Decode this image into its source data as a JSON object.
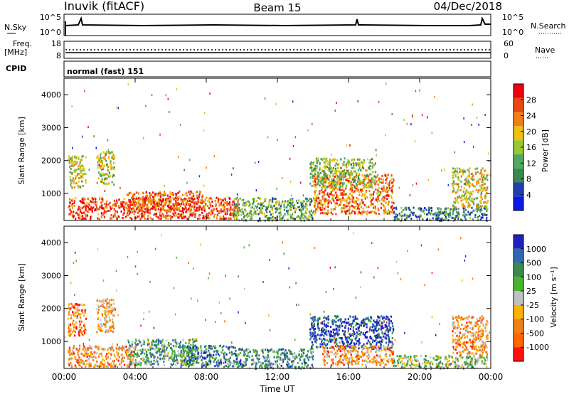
{
  "header": {
    "station": "Inuvik (fitACF)",
    "beam": "Beam 15",
    "date": "04/Dec/2018"
  },
  "top_panels": {
    "nsky_label": "N.Sky",
    "nsearch_label": "N.Search",
    "noise_ticks": [
      "10^5",
      "10^0"
    ],
    "freq_label_1": "Freq.",
    "freq_label_2": "[MHz]",
    "freq_ticks": [
      "18",
      "8"
    ],
    "nave_label": "Nave",
    "nave_ticks": [
      "60",
      "0"
    ],
    "cpid_label": "CPID",
    "cpid_value": "normal (fast) 151"
  },
  "colors": {
    "power": [
      "#0a1ae0",
      "#2040b0",
      "#3a8a50",
      "#52a860",
      "#9ac832",
      "#f0c010",
      "#f08018",
      "#e84814",
      "#f00010"
    ],
    "velocity": [
      "#2020c0",
      "#2e6ab0",
      "#3a8a50",
      "#46b430",
      "#c0c0c0",
      "#ffb000",
      "#f08018",
      "#ff6600",
      "#ff1010"
    ]
  },
  "chart_data": [
    {
      "type": "heatmap",
      "panel": "power",
      "ylabel": "Slant Range [km]",
      "xlabel": "",
      "x_ticks": [
        "00:00",
        "04:00",
        "08:00",
        "12:00",
        "16:00",
        "20:00",
        "00:00"
      ],
      "xlim_hours": [
        0,
        24
      ],
      "y_ticks": [
        1000,
        2000,
        3000,
        4000
      ],
      "ylim": [
        180,
        4500
      ],
      "colorbar": {
        "label": "Power [dB]",
        "range": [
          0,
          32
        ],
        "ticks": [
          4,
          8,
          12,
          16,
          20,
          24,
          28
        ]
      },
      "regions": [
        {
          "t0": 0.2,
          "t1": 9.8,
          "r0": 250,
          "r1": 900,
          "level": 0.85
        },
        {
          "t0": 3.5,
          "t1": 7.8,
          "r0": 500,
          "r1": 1100,
          "level": 0.8
        },
        {
          "t0": 0.2,
          "t1": 1.2,
          "r0": 1200,
          "r1": 2200,
          "level": 0.55
        },
        {
          "t0": 1.8,
          "t1": 2.8,
          "r0": 1300,
          "r1": 2300,
          "level": 0.5
        },
        {
          "t0": 14.0,
          "t1": 18.5,
          "r0": 400,
          "r1": 1600,
          "level": 0.75
        },
        {
          "t0": 13.8,
          "t1": 17.5,
          "r0": 1200,
          "r1": 2100,
          "level": 0.45
        },
        {
          "t0": 9.5,
          "t1": 14.0,
          "r0": 200,
          "r1": 900,
          "level": 0.4
        },
        {
          "t0": 18.5,
          "t1": 23.8,
          "r0": 200,
          "r1": 600,
          "level": 0.3
        },
        {
          "t0": 21.8,
          "t1": 23.8,
          "r0": 600,
          "r1": 1800,
          "level": 0.55
        }
      ]
    },
    {
      "type": "heatmap",
      "panel": "velocity",
      "ylabel": "Slant Range [km]",
      "xlabel": "Time UT",
      "x_ticks": [
        "00:00",
        "04:00",
        "08:00",
        "12:00",
        "16:00",
        "20:00",
        "00:00"
      ],
      "xlim_hours": [
        0,
        24
      ],
      "y_ticks": [
        1000,
        2000,
        3000,
        4000
      ],
      "ylim": [
        180,
        4500
      ],
      "colorbar": {
        "label": "Velocity [m s⁻¹]",
        "tick_labels": [
          "1000",
          "500",
          "100",
          "25",
          "-25",
          "-100",
          "-500",
          "-1000"
        ]
      },
      "regions": [
        {
          "t0": 0.2,
          "t1": 4.0,
          "r0": 250,
          "r1": 900,
          "level": 0.7
        },
        {
          "t0": 3.5,
          "t1": 7.5,
          "r0": 300,
          "r1": 1100,
          "level": 0.35
        },
        {
          "t0": 6.5,
          "t1": 10.0,
          "r0": 250,
          "r1": 900,
          "level": 0.25
        },
        {
          "t0": 0.2,
          "t1": 1.2,
          "r0": 1200,
          "r1": 2200,
          "level": 0.75
        },
        {
          "t0": 1.8,
          "t1": 2.8,
          "r0": 1300,
          "r1": 2300,
          "level": 0.65
        },
        {
          "t0": 13.8,
          "t1": 18.5,
          "r0": 800,
          "r1": 1800,
          "level": 0.12
        },
        {
          "t0": 14.5,
          "t1": 18.5,
          "r0": 300,
          "r1": 900,
          "level": 0.7
        },
        {
          "t0": 10.0,
          "t1": 14.0,
          "r0": 200,
          "r1": 800,
          "level": 0.3
        },
        {
          "t0": 18.5,
          "t1": 23.8,
          "r0": 200,
          "r1": 600,
          "level": 0.45
        },
        {
          "t0": 21.8,
          "t1": 23.8,
          "r0": 600,
          "r1": 1800,
          "level": 0.7
        }
      ]
    }
  ]
}
